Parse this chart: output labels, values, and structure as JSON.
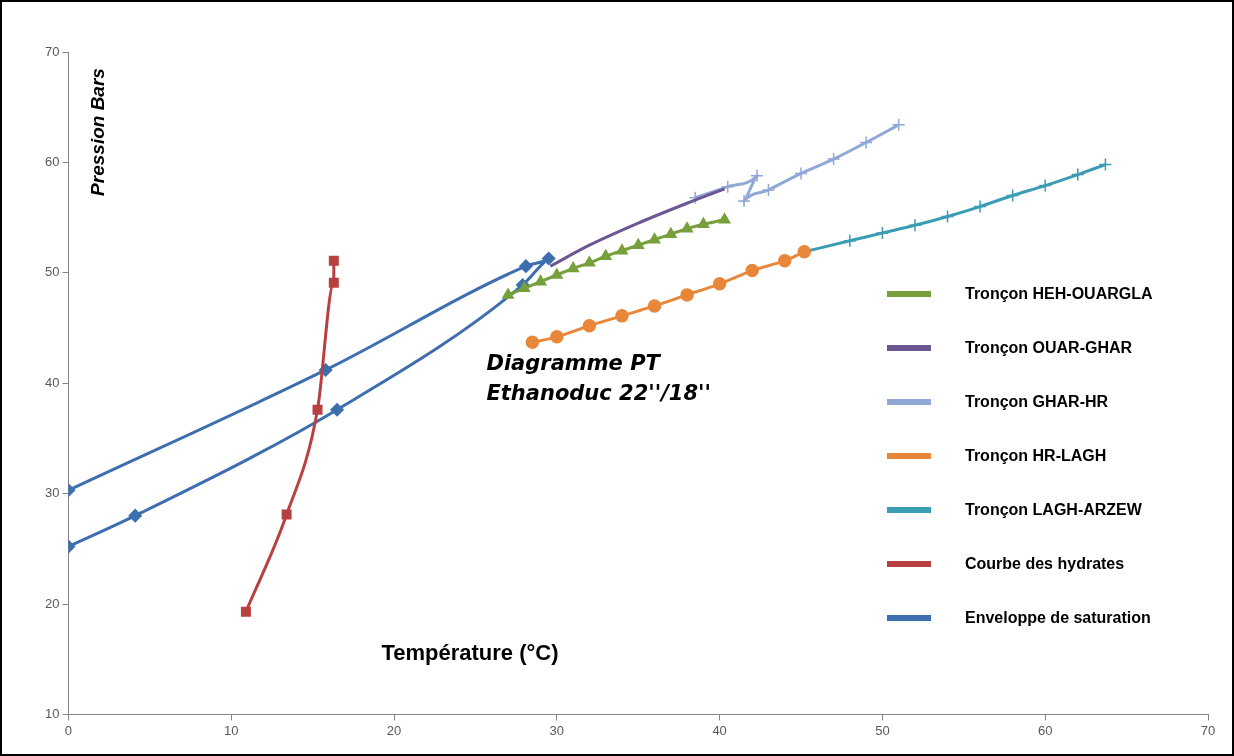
{
  "chart_data": {
    "type": "line",
    "title": "Diagramme PT",
    "subtitle": "Ethanoduc 22''/18''",
    "xlabel": "Température (°C)",
    "ylabel": "Pression Bars",
    "xlim": [
      0,
      70
    ],
    "xticks": [
      0,
      10,
      20,
      30,
      40,
      50,
      60,
      70
    ],
    "ylim": [
      10,
      70
    ],
    "yticks": [
      10,
      20,
      30,
      40,
      50,
      60,
      70
    ],
    "grid": false,
    "legend": "right",
    "series": [
      {
        "name": "Tronçon HEH-OUARGLA",
        "color": "#77a03c",
        "marker": "triangle",
        "x": [
          27,
          28,
          29,
          30,
          31,
          32,
          33,
          34,
          35,
          36,
          37,
          38,
          39,
          40.3
        ],
        "values": [
          48,
          48.6,
          49.2,
          49.8,
          50.4,
          50.9,
          51.5,
          52,
          52.5,
          53,
          53.5,
          54,
          54.4,
          54.8
        ]
      },
      {
        "name": "Tronçon OUAR-GHAR",
        "color": "#6c5694",
        "marker": "none",
        "x": [
          29.6,
          32,
          35,
          38,
          40.3
        ],
        "values": [
          50.6,
          52.5,
          54.5,
          56.3,
          57.6
        ]
      },
      {
        "name": "Tronçon GHAR-HR",
        "color": "#8fa8d8",
        "marker": "cross",
        "x": [
          38.5,
          40.5,
          42.3,
          41.5,
          43,
          45,
          47,
          49,
          51
        ],
        "values": [
          56.8,
          57.8,
          58.8,
          56.5,
          57.5,
          59,
          60.3,
          61.8,
          63.4
        ]
      },
      {
        "name": "Tronçon HR-LAGH",
        "color": "#e8873a",
        "marker": "circle",
        "x": [
          28.5,
          30,
          32,
          34,
          36,
          38,
          40,
          42,
          44,
          45.2
        ],
        "values": [
          43.7,
          44.2,
          45.2,
          46.1,
          47,
          48,
          49,
          50.2,
          51.1,
          51.9
        ]
      },
      {
        "name": "Tronçon LAGH-ARZEW",
        "color": "#3b9cb5",
        "marker": "cross",
        "x": [
          45.2,
          48,
          50,
          52,
          54,
          56,
          58,
          60,
          62,
          63.7
        ],
        "values": [
          51.9,
          52.9,
          53.6,
          54.3,
          55.1,
          56,
          57,
          57.9,
          58.9,
          59.8
        ]
      },
      {
        "name": "Courbe des hydrates",
        "color": "#b94040",
        "marker": "square",
        "x": [
          10.9,
          13.4,
          15.3,
          16.3,
          16.3
        ],
        "values": [
          19.3,
          28.1,
          37.6,
          49.1,
          51.1
        ]
      },
      {
        "name": "Enveloppe de saturation",
        "color": "#3d6fb0",
        "marker": "diamond",
        "x": [
          0,
          4.1,
          16.5,
          27.9,
          29.5,
          28.1,
          15.8,
          0
        ],
        "values": [
          25.2,
          28,
          37.6,
          48.9,
          51.3,
          50.6,
          41.2,
          30.3
        ]
      }
    ]
  }
}
